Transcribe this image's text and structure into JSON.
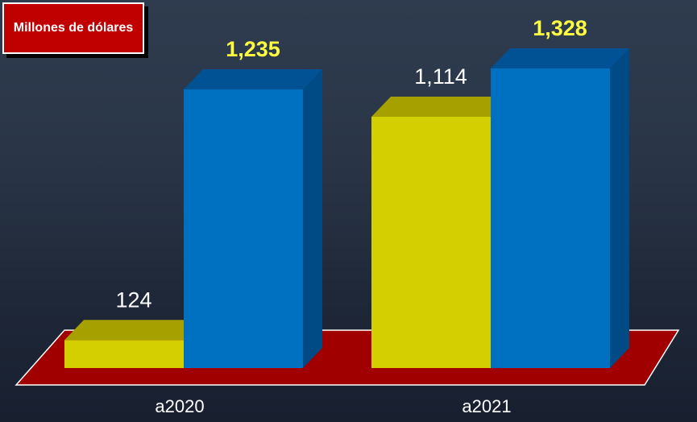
{
  "unit_label": "Millones de dólares",
  "colors": {
    "background": "#2a3648",
    "floor": "#a00000",
    "yellow_front": "#d4cf00",
    "yellow_top": "#a6a000",
    "blue_front": "#0070c0",
    "blue_top": "#005294",
    "blue_side": "#004a85",
    "highlight_label": "#ffff40",
    "plain_label": "#ffffff"
  },
  "chart_data": {
    "type": "bar",
    "title": "",
    "xlabel": "",
    "ylabel": "Millones de dólares",
    "categories": [
      "a2020",
      "a2021"
    ],
    "series": [
      {
        "values": [
          124,
          1114
        ],
        "labels": [
          "124",
          "1,114"
        ]
      },
      {
        "values": [
          1235,
          1328
        ],
        "labels": [
          "1,235",
          "1,328"
        ]
      }
    ],
    "ylim": [
      0,
      1328
    ],
    "grid": false,
    "legend": "none"
  }
}
